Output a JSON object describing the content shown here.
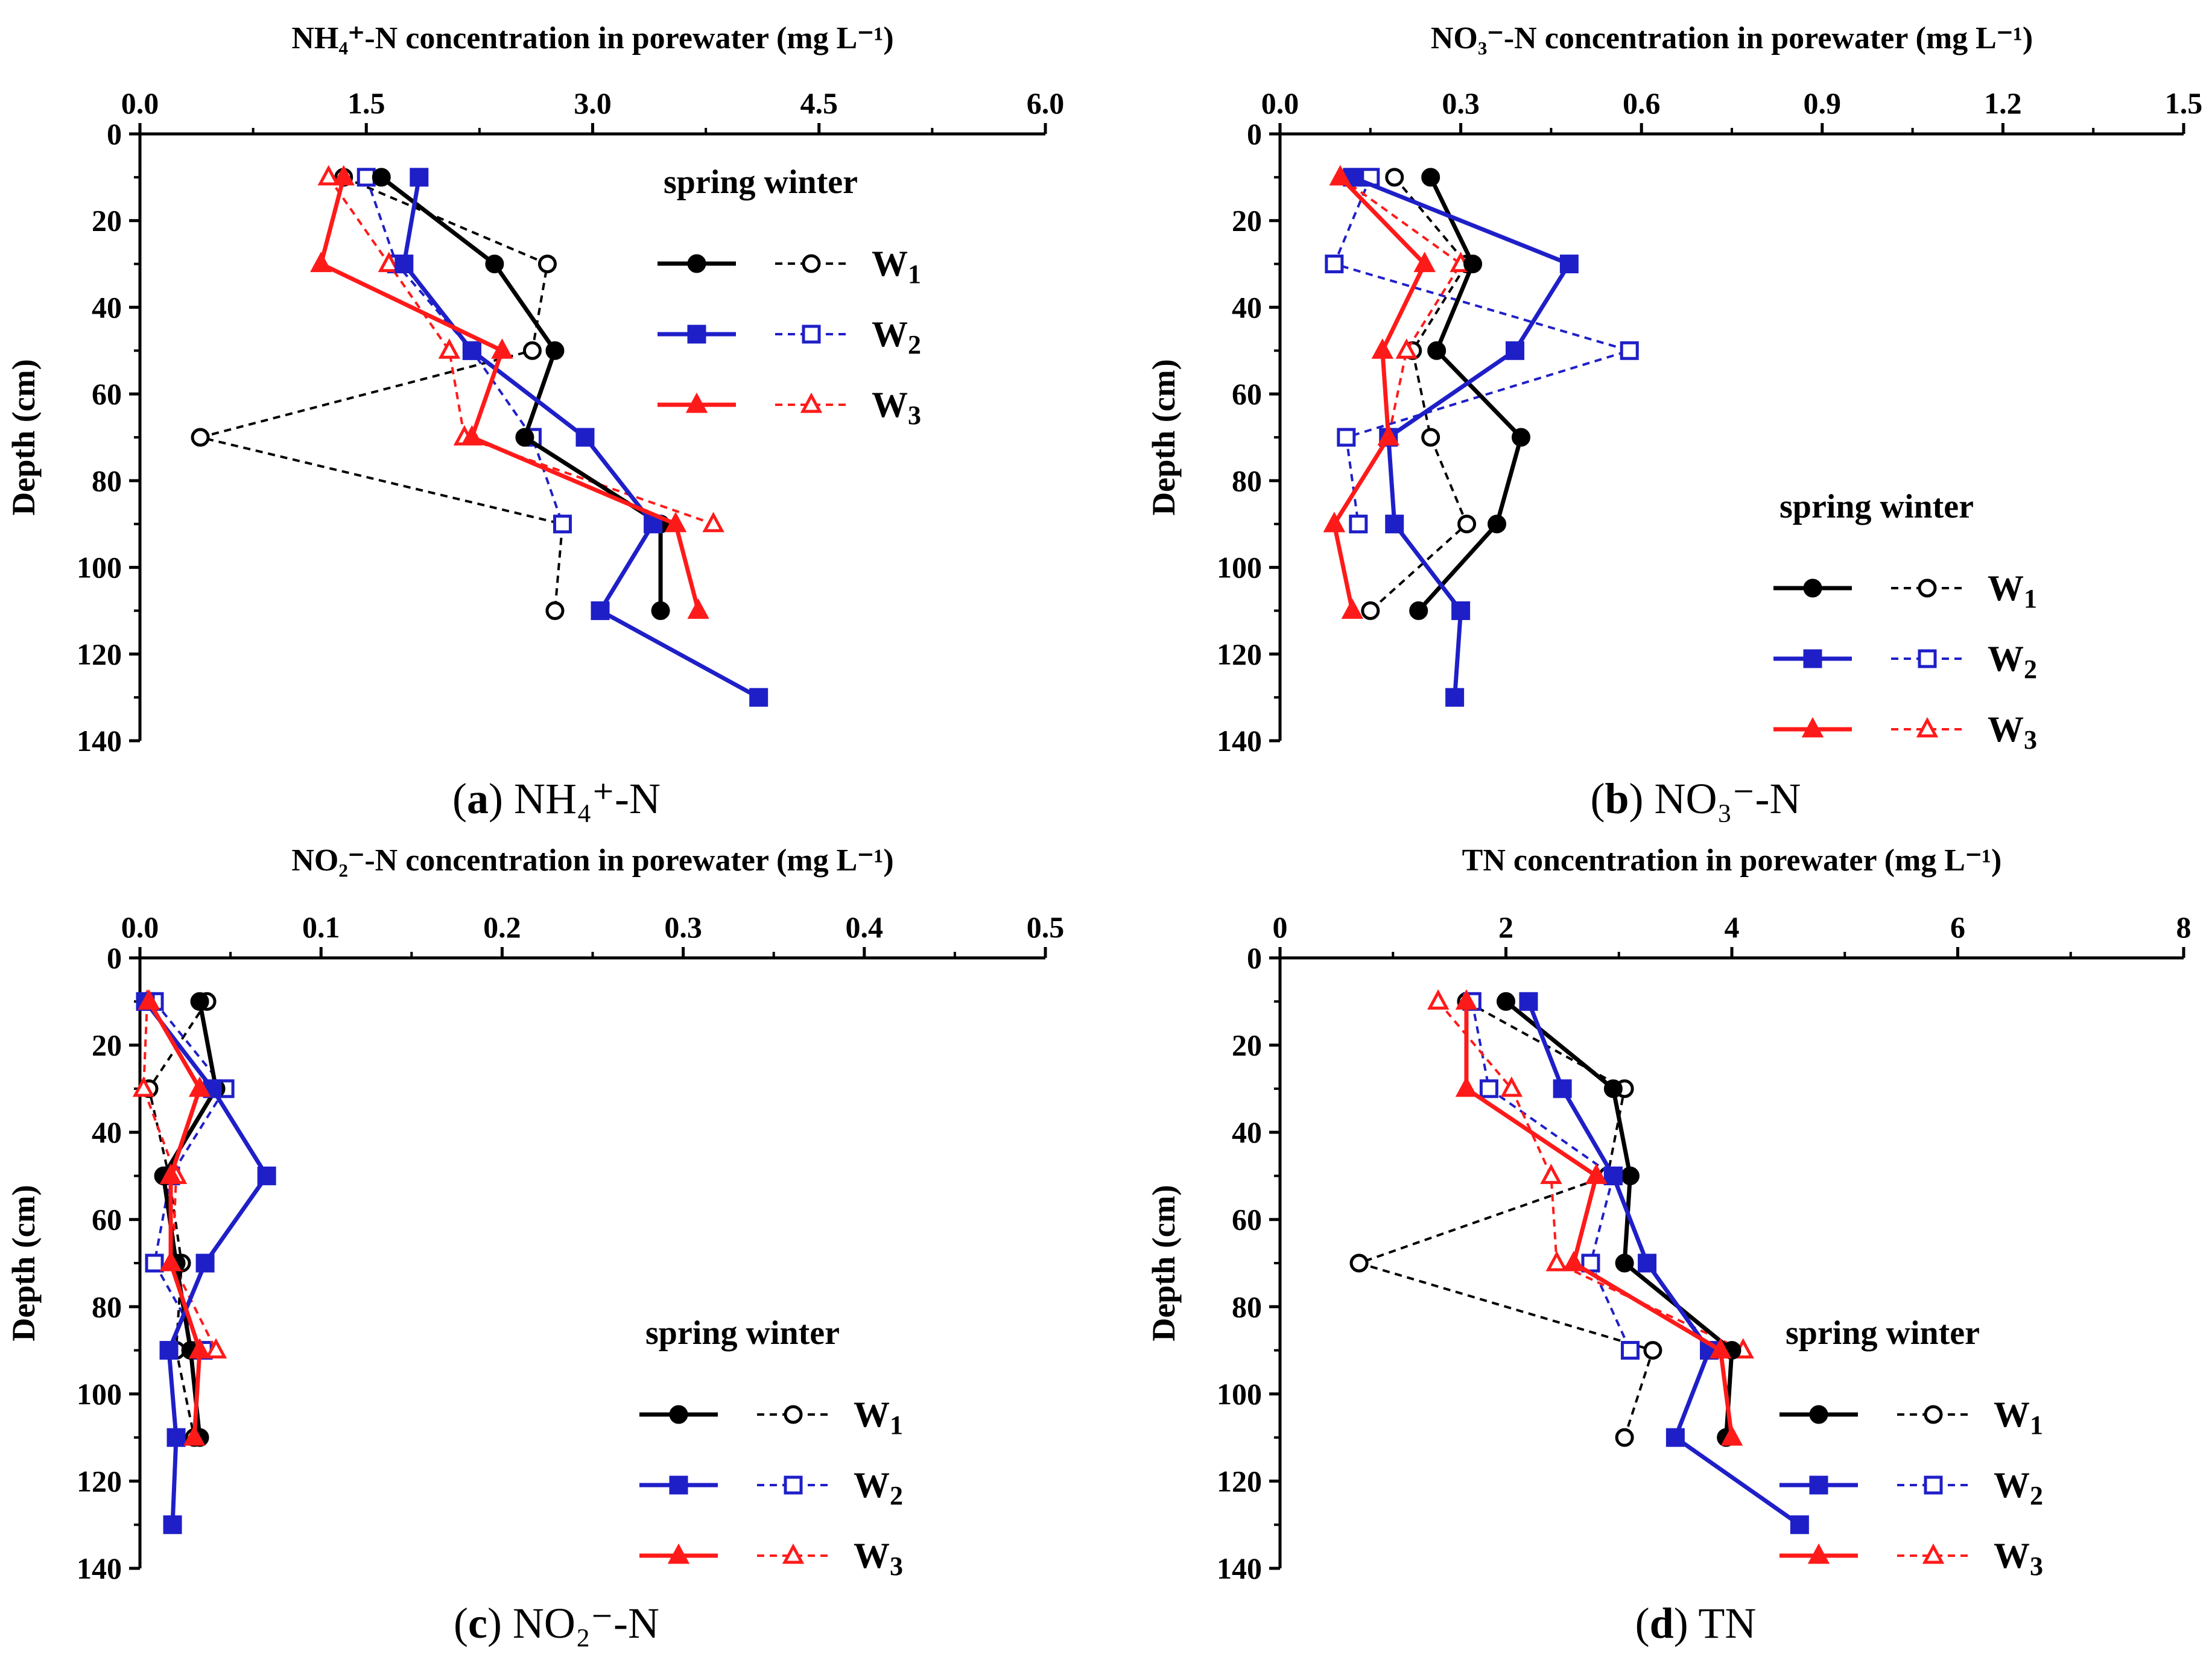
{
  "chart_data": [
    {
      "type": "line",
      "title": "NH₄⁺-N concentration in porewater (mg L⁻¹)",
      "caption_letter": "(a)",
      "caption_text": "NH₄⁺-N",
      "xlabel": "NH₄⁺-N concentration in porewater (mg L⁻¹)",
      "ylabel": "Depth (cm)",
      "xlim": [
        0,
        6
      ],
      "xticks": [
        "0.0",
        "1.5",
        "3.0",
        "4.5",
        "6.0"
      ],
      "xtick_values": [
        0,
        1.5,
        3,
        4.5,
        6
      ],
      "ylim": [
        0,
        140
      ],
      "yticks": [
        "0",
        "20",
        "40",
        "60",
        "80",
        "100",
        "120",
        "140"
      ],
      "ytick_values": [
        0,
        20,
        40,
        60,
        80,
        100,
        120,
        140
      ],
      "legend_header": "spring winter",
      "legend_position": "top-right",
      "series": [
        {
          "name": "W1",
          "season": "spring",
          "color": "#000000",
          "marker": "circle",
          "filled": true,
          "dashed": false,
          "x": [
            1.6,
            2.35,
            2.75,
            2.55,
            3.45,
            3.45
          ],
          "y": [
            10,
            30,
            50,
            70,
            90,
            110
          ]
        },
        {
          "name": "W2",
          "season": "spring",
          "color": "#1f1fc8",
          "marker": "square",
          "filled": true,
          "dashed": false,
          "x": [
            1.85,
            1.75,
            2.2,
            2.95,
            3.4,
            3.05,
            4.1
          ],
          "y": [
            10,
            30,
            50,
            70,
            90,
            110,
            130
          ]
        },
        {
          "name": "W3",
          "season": "spring",
          "color": "#ff1a1a",
          "marker": "triangle",
          "filled": true,
          "dashed": false,
          "x": [
            1.35,
            1.2,
            2.4,
            2.2,
            3.55,
            3.7
          ],
          "y": [
            10,
            30,
            50,
            70,
            90,
            110
          ]
        },
        {
          "name": "W1",
          "season": "winter",
          "color": "#000000",
          "marker": "circle",
          "filled": false,
          "dashed": true,
          "x": [
            1.35,
            2.7,
            2.6,
            0.4,
            2.8,
            2.75
          ],
          "y": [
            10,
            30,
            50,
            70,
            90,
            110
          ]
        },
        {
          "name": "W2",
          "season": "winter",
          "color": "#1f1fc8",
          "marker": "square",
          "filled": false,
          "dashed": true,
          "x": [
            1.5,
            1.7,
            2.2,
            2.6,
            2.8
          ],
          "y": [
            10,
            30,
            50,
            70,
            90
          ]
        },
        {
          "name": "W3",
          "season": "winter",
          "color": "#ff1a1a",
          "marker": "triangle",
          "filled": false,
          "dashed": true,
          "x": [
            1.25,
            1.65,
            2.05,
            2.15,
            3.8
          ],
          "y": [
            10,
            30,
            50,
            70,
            90
          ]
        }
      ]
    },
    {
      "type": "line",
      "title": "NO₃⁻-N concentration in porewater (mg L⁻¹)",
      "caption_letter": "(b)",
      "caption_text": "NO₃⁻-N",
      "xlabel": "NO₃⁻-N concentration in porewater (mg L⁻¹)",
      "ylabel": "Depth (cm)",
      "xlim": [
        0,
        1.5
      ],
      "xticks": [
        "0.0",
        "0.3",
        "0.6",
        "0.9",
        "1.2",
        "1.5"
      ],
      "xtick_values": [
        0,
        0.3,
        0.6,
        0.9,
        1.2,
        1.5
      ],
      "ylim": [
        0,
        140
      ],
      "yticks": [
        "0",
        "20",
        "40",
        "60",
        "80",
        "100",
        "120",
        "140"
      ],
      "ytick_values": [
        0,
        20,
        40,
        60,
        80,
        100,
        120,
        140
      ],
      "legend_header": "spring winter",
      "legend_position": "center-right",
      "series": [
        {
          "name": "W1",
          "season": "spring",
          "color": "#000000",
          "marker": "circle",
          "filled": true,
          "dashed": false,
          "x": [
            0.25,
            0.32,
            0.26,
            0.4,
            0.36,
            0.23
          ],
          "y": [
            10,
            30,
            50,
            70,
            90,
            110
          ]
        },
        {
          "name": "W2",
          "season": "spring",
          "color": "#1f1fc8",
          "marker": "square",
          "filled": true,
          "dashed": false,
          "x": [
            0.12,
            0.48,
            0.39,
            0.18,
            0.19,
            0.3,
            0.29
          ],
          "y": [
            10,
            30,
            50,
            70,
            90,
            110,
            130
          ]
        },
        {
          "name": "W3",
          "season": "spring",
          "color": "#ff1a1a",
          "marker": "triangle",
          "filled": true,
          "dashed": false,
          "x": [
            0.1,
            0.24,
            0.17,
            0.18,
            0.09,
            0.12
          ],
          "y": [
            10,
            30,
            50,
            70,
            90,
            110
          ]
        },
        {
          "name": "W1",
          "season": "winter",
          "color": "#000000",
          "marker": "circle",
          "filled": false,
          "dashed": true,
          "x": [
            0.19,
            0.31,
            0.22,
            0.25,
            0.31,
            0.15
          ],
          "y": [
            10,
            30,
            50,
            70,
            90,
            110
          ]
        },
        {
          "name": "W2",
          "season": "winter",
          "color": "#1f1fc8",
          "marker": "square",
          "filled": false,
          "dashed": true,
          "x": [
            0.15,
            0.09,
            0.58,
            0.11,
            0.13
          ],
          "y": [
            10,
            30,
            50,
            70,
            90
          ]
        },
        {
          "name": "W3",
          "season": "winter",
          "color": "#ff1a1a",
          "marker": "triangle",
          "filled": false,
          "dashed": true,
          "x": [
            0.1,
            0.3,
            0.21,
            0.18,
            0.09
          ],
          "y": [
            10,
            30,
            50,
            70,
            90
          ]
        }
      ]
    },
    {
      "type": "line",
      "title": "NO₂⁻-N concentration in porewater (mg L⁻¹)",
      "caption_letter": "(c)",
      "caption_text": "NO₂⁻-N",
      "xlabel": "NO₂⁻-N concentration in porewater (mg L⁻¹)",
      "ylabel": "Depth (cm)",
      "xlim": [
        0,
        0.5
      ],
      "xticks": [
        "0.0",
        "0.1",
        "0.2",
        "0.3",
        "0.4",
        "0.5"
      ],
      "xtick_values": [
        0,
        0.1,
        0.2,
        0.3,
        0.4,
        0.5
      ],
      "ylim": [
        0,
        140
      ],
      "yticks": [
        "0",
        "20",
        "40",
        "60",
        "80",
        "100",
        "120",
        "140"
      ],
      "ytick_values": [
        0,
        20,
        40,
        60,
        80,
        100,
        120,
        140
      ],
      "legend_header": "spring winter",
      "legend_position": "bottom-right",
      "series": [
        {
          "name": "W1",
          "season": "spring",
          "color": "#000000",
          "marker": "circle",
          "filled": true,
          "dashed": false,
          "x": [
            0.033,
            0.042,
            0.013,
            0.02,
            0.028,
            0.033
          ],
          "y": [
            10,
            30,
            50,
            70,
            90,
            110
          ]
        },
        {
          "name": "W2",
          "season": "spring",
          "color": "#1f1fc8",
          "marker": "square",
          "filled": true,
          "dashed": false,
          "x": [
            0.003,
            0.04,
            0.07,
            0.036,
            0.016,
            0.02,
            0.018
          ],
          "y": [
            10,
            30,
            50,
            70,
            90,
            110,
            130
          ]
        },
        {
          "name": "W3",
          "season": "spring",
          "color": "#ff1a1a",
          "marker": "triangle",
          "filled": true,
          "dashed": false,
          "x": [
            0.005,
            0.033,
            0.017,
            0.017,
            0.033,
            0.03
          ],
          "y": [
            10,
            30,
            50,
            70,
            90,
            110
          ]
        },
        {
          "name": "W1",
          "season": "winter",
          "color": "#000000",
          "marker": "circle",
          "filled": false,
          "dashed": true,
          "x": [
            0.037,
            0.005,
            0.016,
            0.023,
            0.02,
            0.03
          ],
          "y": [
            10,
            30,
            50,
            70,
            90,
            110
          ]
        },
        {
          "name": "W2",
          "season": "winter",
          "color": "#1f1fc8",
          "marker": "square",
          "filled": false,
          "dashed": true,
          "x": [
            0.008,
            0.047,
            0.017,
            0.008,
            0.035
          ],
          "y": [
            10,
            30,
            50,
            70,
            90
          ]
        },
        {
          "name": "W3",
          "season": "winter",
          "color": "#ff1a1a",
          "marker": "triangle",
          "filled": false,
          "dashed": true,
          "x": [
            0.004,
            0.002,
            0.02,
            0.018,
            0.042
          ],
          "y": [
            10,
            30,
            50,
            70,
            90
          ]
        }
      ]
    },
    {
      "type": "line",
      "title": "TN concentration in porewater (mg L⁻¹)",
      "caption_letter": "(d)",
      "caption_text": "TN",
      "xlabel": "TN concentration in porewater (mg L⁻¹)",
      "ylabel": "Depth (cm)",
      "xlim": [
        0,
        8
      ],
      "xticks": [
        "0",
        "2",
        "4",
        "6",
        "8"
      ],
      "xtick_values": [
        0,
        2,
        4,
        6,
        8
      ],
      "ylim": [
        0,
        140
      ],
      "yticks": [
        "0",
        "20",
        "40",
        "60",
        "80",
        "100",
        "120",
        "140"
      ],
      "ytick_values": [
        0,
        20,
        40,
        60,
        80,
        100,
        120,
        140
      ],
      "legend_header": "spring winter",
      "legend_position": "bottom-right",
      "series": [
        {
          "name": "W1",
          "season": "spring",
          "color": "#000000",
          "marker": "circle",
          "filled": true,
          "dashed": false,
          "x": [
            2.0,
            2.95,
            3.1,
            3.05,
            4.0,
            3.95
          ],
          "y": [
            10,
            30,
            50,
            70,
            90,
            110
          ]
        },
        {
          "name": "W2",
          "season": "spring",
          "color": "#1f1fc8",
          "marker": "square",
          "filled": true,
          "dashed": false,
          "x": [
            2.2,
            2.5,
            2.95,
            3.25,
            3.8,
            3.5,
            4.6
          ],
          "y": [
            10,
            30,
            50,
            70,
            90,
            110,
            130
          ]
        },
        {
          "name": "W3",
          "season": "spring",
          "color": "#ff1a1a",
          "marker": "triangle",
          "filled": true,
          "dashed": false,
          "x": [
            1.65,
            1.65,
            2.8,
            2.6,
            3.9,
            4.0
          ],
          "y": [
            10,
            30,
            50,
            70,
            90,
            110
          ]
        },
        {
          "name": "W1",
          "season": "winter",
          "color": "#000000",
          "marker": "circle",
          "filled": false,
          "dashed": true,
          "x": [
            1.65,
            3.05,
            2.9,
            0.7,
            3.3,
            3.05
          ],
          "y": [
            10,
            30,
            50,
            70,
            90,
            110
          ]
        },
        {
          "name": "W2",
          "season": "winter",
          "color": "#1f1fc8",
          "marker": "square",
          "filled": false,
          "dashed": true,
          "x": [
            1.7,
            1.85,
            2.95,
            2.75,
            3.1
          ],
          "y": [
            10,
            30,
            50,
            70,
            90
          ]
        },
        {
          "name": "W3",
          "season": "winter",
          "color": "#ff1a1a",
          "marker": "triangle",
          "filled": false,
          "dashed": true,
          "x": [
            1.4,
            2.05,
            2.4,
            2.45,
            4.1
          ],
          "y": [
            10,
            30,
            50,
            70,
            90
          ]
        }
      ]
    }
  ]
}
